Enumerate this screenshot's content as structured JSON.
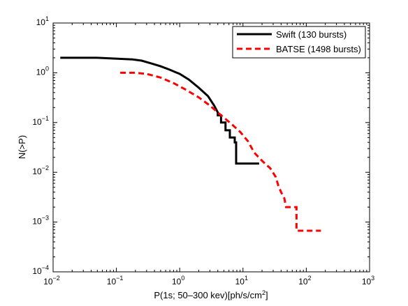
{
  "chart_data": {
    "type": "line",
    "title": "",
    "xlabel": "P(1s; 50–300 kev)[ph/s/cm²]",
    "ylabel": "N(>P)",
    "x_scale": "log",
    "y_scale": "log",
    "xlim": [
      0.01,
      1000
    ],
    "ylim": [
      0.0001,
      10
    ],
    "grid": false,
    "legend_position": "top-right",
    "x_ticks": [
      {
        "base": "10",
        "exp": "−2"
      },
      {
        "base": "10",
        "exp": "−1"
      },
      {
        "base": "10",
        "exp": "0"
      },
      {
        "base": "10",
        "exp": "1"
      },
      {
        "base": "10",
        "exp": "2"
      },
      {
        "base": "10",
        "exp": "3"
      }
    ],
    "y_ticks": [
      {
        "base": "10",
        "exp": "−4"
      },
      {
        "base": "10",
        "exp": "−3"
      },
      {
        "base": "10",
        "exp": "−2"
      },
      {
        "base": "10",
        "exp": "−1"
      },
      {
        "base": "10",
        "exp": "0"
      },
      {
        "base": "10",
        "exp": "1"
      }
    ],
    "series": [
      {
        "name": "Swift (130 bursts)",
        "color": "#000000",
        "style": "solid",
        "points": [
          [
            0.013,
            2.0
          ],
          [
            0.05,
            2.0
          ],
          [
            0.08,
            1.95
          ],
          [
            0.12,
            1.9
          ],
          [
            0.18,
            1.85
          ],
          [
            0.25,
            1.75
          ],
          [
            0.35,
            1.55
          ],
          [
            0.5,
            1.35
          ],
          [
            0.7,
            1.15
          ],
          [
            1.0,
            0.95
          ],
          [
            1.4,
            0.73
          ],
          [
            2.0,
            0.5
          ],
          [
            2.8,
            0.34
          ],
          [
            3.5,
            0.22
          ],
          [
            4.0,
            0.16
          ],
          [
            4.0,
            0.14
          ],
          [
            4.5,
            0.14
          ],
          [
            4.5,
            0.1
          ],
          [
            5.3,
            0.1
          ],
          [
            5.3,
            0.07
          ],
          [
            6.2,
            0.07
          ],
          [
            6.2,
            0.05
          ],
          [
            7.4,
            0.05
          ],
          [
            7.4,
            0.04
          ],
          [
            7.8,
            0.04
          ],
          [
            7.8,
            0.015
          ],
          [
            18.0,
            0.015
          ]
        ]
      },
      {
        "name": "BATSE (1498 bursts)",
        "color": "#ff0000",
        "style": "dashed",
        "points": [
          [
            0.115,
            1.0
          ],
          [
            0.2,
            1.0
          ],
          [
            0.3,
            0.95
          ],
          [
            0.5,
            0.8
          ],
          [
            0.8,
            0.62
          ],
          [
            1.2,
            0.47
          ],
          [
            2.0,
            0.32
          ],
          [
            3.0,
            0.22
          ],
          [
            4.5,
            0.14
          ],
          [
            6.5,
            0.095
          ],
          [
            9.0,
            0.065
          ],
          [
            12.0,
            0.042
          ],
          [
            15.0,
            0.025
          ],
          [
            20.0,
            0.017
          ],
          [
            27.0,
            0.012
          ],
          [
            33.0,
            0.008
          ],
          [
            36.0,
            0.0055
          ],
          [
            40.0,
            0.004
          ],
          [
            45.0,
            0.003
          ],
          [
            48.0,
            0.002
          ],
          [
            70.0,
            0.002
          ],
          [
            70.0,
            0.00067
          ],
          [
            170.0,
            0.00067
          ]
        ]
      }
    ]
  }
}
